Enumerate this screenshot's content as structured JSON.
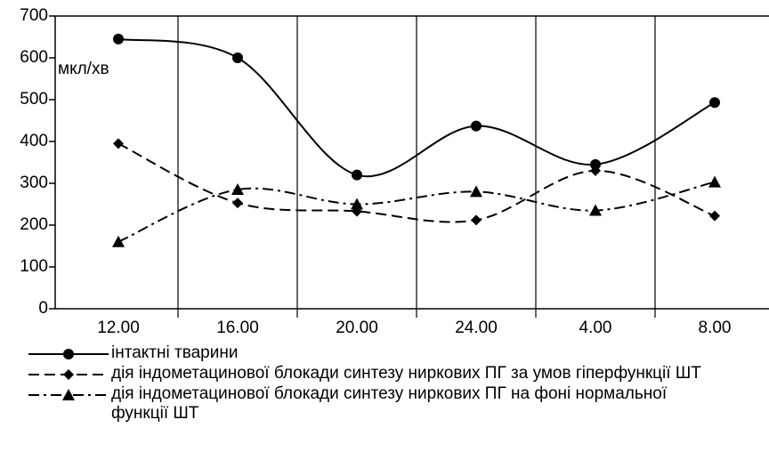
{
  "chart_data": {
    "type": "line",
    "annotation": "мкл/хв",
    "categories": [
      "12.00",
      "16.00",
      "20.00",
      "24.00",
      "4.00",
      "8.00"
    ],
    "series": [
      {
        "name": "інтактні тварини",
        "color": "#000000",
        "dash": "solid",
        "marker": "circle",
        "values": [
          645,
          600,
          320,
          437,
          345,
          493
        ]
      },
      {
        "name": "дія індометацинової блокади синтезу ниркових ПГ за умов гіперфункції ШТ",
        "color": "#000000",
        "dash": "dashed",
        "marker": "diamond",
        "values": [
          395,
          253,
          233,
          212,
          330,
          222
        ]
      },
      {
        "name": "дія індометацинової блокади синтезу ниркових ПГ на фоні нормальної функції ШТ",
        "color": "#000000",
        "dash": "dashdot",
        "marker": "triangle",
        "values": [
          160,
          285,
          250,
          280,
          235,
          303
        ]
      }
    ],
    "ylim": [
      0,
      700
    ],
    "yticks": [
      0,
      100,
      200,
      300,
      400,
      500,
      600,
      700
    ],
    "category_separators": true
  }
}
